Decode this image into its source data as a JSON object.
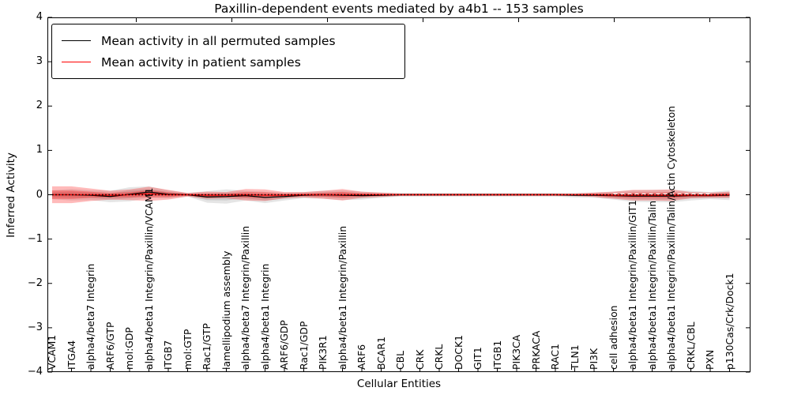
{
  "title": "Paxillin-dependent events mediated by a4b1 -- 153 samples",
  "legend": {
    "items": [
      {
        "label": "Mean activity in all permuted samples",
        "color": "#000000"
      },
      {
        "label": "Mean activity in patient samples",
        "color": "#ff0000"
      }
    ]
  },
  "axes": {
    "x_label": "Cellular Entities",
    "y_label": "Inferred Activity",
    "y_ticks": [
      "4",
      "3",
      "2",
      "1",
      "0",
      "−1",
      "−2",
      "−3",
      "−4"
    ]
  },
  "chart_data": {
    "type": "line",
    "title": "Paxillin-dependent events mediated by a4b1 -- 153 samples",
    "xlabel": "Cellular Entities",
    "ylabel": "Inferred Activity",
    "ylim": [
      -4,
      4
    ],
    "grid": false,
    "legend_position": "upper left",
    "x_tick_rotation": 90,
    "categories": [
      "VCAM1",
      "ITGA4",
      "alpha4/beta7 Integrin",
      "ARF6/GTP",
      "mol:GDP",
      "alpha4/beta1 Integrin/Paxillin/VCAM1",
      "ITGB7",
      "mol:GTP",
      "Rac1/GTP",
      "lamellipodium assembly",
      "alpha4/beta7 Integrin/Paxillin",
      "alpha4/beta1 Integrin",
      "ARF6/GDP",
      "Rac1/GDP",
      "PIK3R1",
      "alpha4/beta1 Integrin/Paxillin",
      "ARF6",
      "BCAR1",
      "CBL",
      "CRK",
      "CRKL",
      "DOCK1",
      "GIT1",
      "ITGB1",
      "PIK3CA",
      "PRKACA",
      "RAC1",
      "TLN1",
      "PI3K",
      "cell adhesion",
      "alpha4/beta1 Integrin/Paxillin/GIT1",
      "alpha4/beta1 Integrin/Paxillin/Talin",
      "alpha4/beta1 Integrin/Paxillin/Talin/Actin Cytoskeleton",
      "CRKL/CBL",
      "PXN",
      "p130Cas/Crk/Dock1"
    ],
    "series": [
      {
        "name": "Mean activity in all permuted samples",
        "color": "#000000",
        "line_style": "solid",
        "values": [
          0,
          0,
          -0.01,
          -0.04,
          0.01,
          0.06,
          0.01,
          0,
          -0.05,
          -0.04,
          -0.02,
          -0.06,
          -0.04,
          -0.01,
          0,
          -0.01,
          -0.02,
          -0.01,
          0,
          0,
          0,
          0,
          0,
          0,
          0,
          0,
          0,
          -0.01,
          -0.01,
          -0.02,
          -0.03,
          -0.03,
          -0.03,
          -0.02,
          -0.02,
          -0.01
        ],
        "band_halfwidth": [
          0.1,
          0.13,
          0.11,
          0.13,
          0.16,
          0.13,
          0.09,
          0.04,
          0.13,
          0.16,
          0.11,
          0.13,
          0.09,
          0.07,
          0.09,
          0.11,
          0.09,
          0.06,
          0.04,
          0.04,
          0.04,
          0.04,
          0.04,
          0.04,
          0.04,
          0.04,
          0.04,
          0.05,
          0.06,
          0.09,
          0.13,
          0.14,
          0.14,
          0.11,
          0.08,
          0.11
        ],
        "band_color": "rgba(0,0,0,0.10)"
      },
      {
        "name": "Mean activity in patient samples",
        "color": "#ff0000",
        "line_style": "solid",
        "values": [
          0,
          0,
          0,
          -0.01,
          0,
          0.02,
          0,
          0,
          -0.01,
          -0.01,
          0,
          -0.01,
          -0.01,
          0,
          0,
          0,
          0,
          0,
          0,
          0,
          0,
          0,
          0,
          0,
          0,
          0,
          0,
          0,
          0,
          -0.01,
          -0.01,
          -0.01,
          -0.01,
          -0.01,
          -0.01,
          0
        ],
        "band_halfwidth": [
          0.19,
          0.19,
          0.14,
          0.1,
          0.12,
          0.16,
          0.11,
          0.04,
          0.08,
          0.07,
          0.13,
          0.13,
          0.07,
          0.06,
          0.09,
          0.13,
          0.07,
          0.05,
          0.03,
          0.03,
          0.03,
          0.03,
          0.03,
          0.03,
          0.03,
          0.03,
          0.03,
          0.03,
          0.05,
          0.08,
          0.12,
          0.12,
          0.13,
          0.07,
          0.06,
          0.07
        ],
        "band_color": "rgba(255,0,0,0.27)"
      }
    ],
    "reference_line": {
      "y": 0,
      "style": "dotted",
      "color": "#000000"
    },
    "white_dashed_segment": {
      "from_index": 29,
      "to_index": 34,
      "y": 0.02,
      "color": "#ffffff"
    },
    "y_tick_values": [
      4,
      3,
      2,
      1,
      0,
      -1,
      -2,
      -3,
      -4
    ]
  }
}
